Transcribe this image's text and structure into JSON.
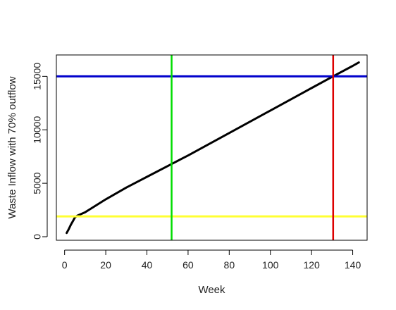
{
  "chart_data": {
    "type": "line",
    "title": "",
    "xlabel": "Week",
    "ylabel": "Waste Inflow with 70% outflow",
    "xlim": [
      -4,
      147
    ],
    "ylim": [
      -330,
      17000
    ],
    "xticks": [
      0,
      20,
      40,
      60,
      80,
      100,
      120,
      140
    ],
    "yticks": [
      0,
      5000,
      10000,
      15000
    ],
    "grid": false,
    "legend": "none",
    "series": [
      {
        "color": "#000000",
        "x": [
          1,
          2,
          3,
          4,
          5,
          6,
          10,
          20,
          30,
          40,
          52,
          60,
          80,
          100,
          120,
          130,
          140,
          143
        ],
        "y": [
          350,
          700,
          1100,
          1450,
          1800,
          1950,
          2290,
          3500,
          4600,
          5600,
          6800,
          7600,
          9700,
          11800,
          13900,
          14950,
          15980,
          16300
        ]
      }
    ],
    "reference_lines": [
      {
        "orientation": "horizontal",
        "value": 15000,
        "color": "#0000cc"
      },
      {
        "orientation": "horizontal",
        "value": 1900,
        "color": "#ffff33"
      },
      {
        "orientation": "vertical",
        "value": 52,
        "color": "#00dd00"
      },
      {
        "orientation": "vertical",
        "value": 130.5,
        "color": "#dd0000"
      }
    ]
  }
}
